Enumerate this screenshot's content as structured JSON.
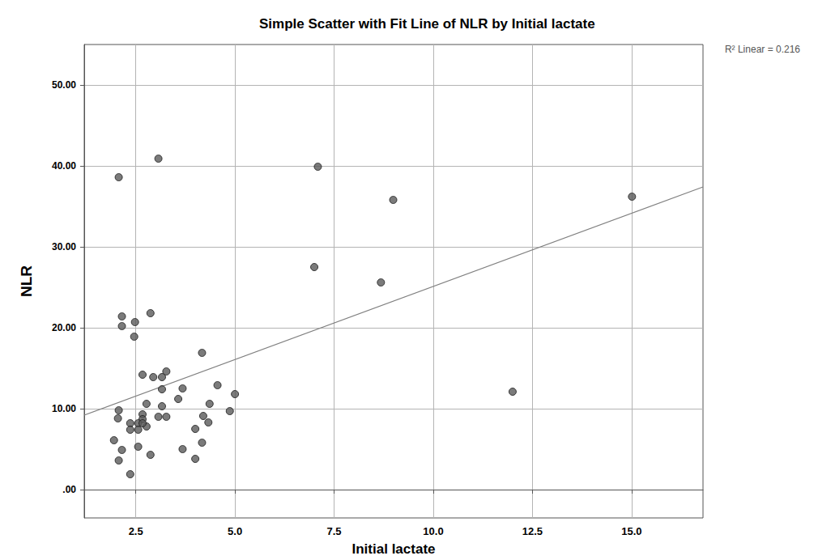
{
  "chart_data": {
    "type": "scatter",
    "title": "Simple Scatter with Fit Line of NLR by Initial lactate",
    "x_label": "Initial lactate",
    "y_label": "NLR",
    "x": [
      2.07,
      3.07,
      7.09,
      8.99,
      15.01,
      7.0,
      8.68,
      12.0,
      2.15,
      2.15,
      2.48,
      2.46,
      2.87,
      4.17,
      2.67,
      2.94,
      3.16,
      3.27,
      3.16,
      3.68,
      3.57,
      4.56,
      5.0,
      4.36,
      4.87,
      2.77,
      3.16,
      2.07,
      2.05,
      2.67,
      2.67,
      3.07,
      3.27,
      4.2,
      4.33,
      4.0,
      2.36,
      2.36,
      2.56,
      2.56,
      2.77,
      2.67,
      1.95,
      2.15,
      2.56,
      2.87,
      3.68,
      4.17,
      4.0,
      2.07,
      2.36
    ],
    "values": [
      38.6,
      40.9,
      39.9,
      35.8,
      36.2,
      27.5,
      25.6,
      12.1,
      21.4,
      20.2,
      20.7,
      18.9,
      21.8,
      16.9,
      14.2,
      13.9,
      13.9,
      14.6,
      12.4,
      12.5,
      11.2,
      12.9,
      11.8,
      10.6,
      9.7,
      10.6,
      10.3,
      9.8,
      8.8,
      9.3,
      8.7,
      9.0,
      9.0,
      9.1,
      8.3,
      7.5,
      8.2,
      7.4,
      8.2,
      7.4,
      7.8,
      8.2,
      6.1,
      4.9,
      5.3,
      4.3,
      5.0,
      5.8,
      3.8,
      3.6,
      1.9
    ],
    "color": "#5a5a5a",
    "marker": "circle",
    "fit_line": {
      "x": [
        1.2,
        16.8
      ],
      "values": [
        9.2,
        37.4
      ],
      "color": "#808080",
      "line_style": "solid"
    },
    "annotations": [
      "R² Linear = 0.216"
    ],
    "xlim": [
      1.2,
      16.8
    ],
    "ylim": [
      -3.5,
      55
    ],
    "xticks": [
      2.5,
      {
        "value": 5,
        "label": "5.0"
      },
      7.5,
      {
        "value": 10,
        "label": "10.0"
      },
      12.5,
      {
        "value": 15,
        "label": "15.0"
      }
    ],
    "yticks": [
      {
        "value": 0,
        "label": ".00"
      },
      {
        "value": 10,
        "label": "10.00"
      },
      {
        "value": 20,
        "label": "20.00"
      },
      {
        "value": 30,
        "label": "30.00"
      },
      {
        "value": 40,
        "label": "40.00"
      },
      {
        "value": 50,
        "label": "50.00"
      }
    ],
    "grid": true
  }
}
